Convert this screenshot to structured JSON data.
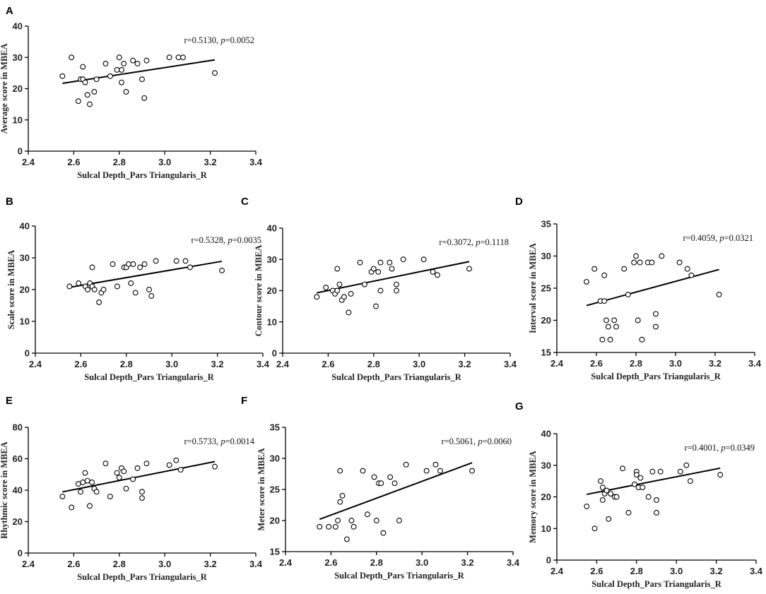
{
  "figure": {
    "background": "#ffffff",
    "point_color": "#000000"
  },
  "chart_data": [
    {
      "panel": "A",
      "type": "scatter",
      "xlabel": "Sulcal Depth_Pars Triangularis_R",
      "ylabel": "Average  score in MBEA",
      "xlim": [
        2.4,
        3.4
      ],
      "ylim": [
        0,
        40
      ],
      "xticks": [
        "2.4",
        "2.6",
        "2.8",
        "3.0",
        "3.2",
        "3.4"
      ],
      "yticks": [
        "0",
        "10",
        "20",
        "30",
        "40"
      ],
      "stat": {
        "r": "r=0.5130, ",
        "p_label": "p",
        "p": "=0.0052"
      },
      "fit": [
        [
          2.55,
          21.7
        ],
        [
          3.22,
          29.2
        ]
      ],
      "points": [
        [
          2.55,
          24
        ],
        [
          2.59,
          30
        ],
        [
          2.62,
          16
        ],
        [
          2.63,
          23
        ],
        [
          2.64,
          23
        ],
        [
          2.64,
          27
        ],
        [
          2.65,
          22
        ],
        [
          2.66,
          18
        ],
        [
          2.67,
          15
        ],
        [
          2.69,
          19
        ],
        [
          2.7,
          23
        ],
        [
          2.74,
          28
        ],
        [
          2.76,
          24
        ],
        [
          2.79,
          26
        ],
        [
          2.8,
          30
        ],
        [
          2.81,
          26
        ],
        [
          2.81,
          22
        ],
        [
          2.82,
          28
        ],
        [
          2.83,
          19
        ],
        [
          2.86,
          29
        ],
        [
          2.88,
          28
        ],
        [
          2.9,
          23
        ],
        [
          2.91,
          17
        ],
        [
          2.92,
          29
        ],
        [
          3.02,
          30
        ],
        [
          3.06,
          30
        ],
        [
          3.08,
          30
        ],
        [
          3.22,
          25
        ]
      ]
    },
    {
      "panel": "B",
      "type": "scatter",
      "xlabel": "Sulcal Depth_Pars Triangularis_R",
      "ylabel": "Scale score in MBEA",
      "xlim": [
        2.4,
        3.4
      ],
      "ylim": [
        0,
        40
      ],
      "xticks": [
        "2.4",
        "2.6",
        "2.8",
        "3.0",
        "3.2",
        "3.4"
      ],
      "yticks": [
        "0",
        "10",
        "20",
        "30",
        "40"
      ],
      "stat": {
        "r": "r=0.5328, ",
        "p_label": "p",
        "p": "=0.0035"
      },
      "fit": [
        [
          2.55,
          20.7
        ],
        [
          3.22,
          28.9
        ]
      ],
      "points": [
        [
          2.55,
          21
        ],
        [
          2.59,
          22
        ],
        [
          2.62,
          21
        ],
        [
          2.63,
          20
        ],
        [
          2.64,
          22
        ],
        [
          2.65,
          27
        ],
        [
          2.65,
          21
        ],
        [
          2.66,
          20
        ],
        [
          2.68,
          16
        ],
        [
          2.69,
          19
        ],
        [
          2.7,
          20
        ],
        [
          2.74,
          28
        ],
        [
          2.76,
          21
        ],
        [
          2.79,
          27
        ],
        [
          2.8,
          27
        ],
        [
          2.81,
          28
        ],
        [
          2.82,
          22
        ],
        [
          2.83,
          28
        ],
        [
          2.84,
          19
        ],
        [
          2.86,
          27
        ],
        [
          2.88,
          28
        ],
        [
          2.9,
          20
        ],
        [
          2.91,
          18
        ],
        [
          2.93,
          29
        ],
        [
          3.02,
          29
        ],
        [
          3.06,
          29
        ],
        [
          3.08,
          27
        ],
        [
          3.22,
          26
        ]
      ]
    },
    {
      "panel": "C",
      "type": "scatter",
      "xlabel": "Sulcal Depth_Pars Triangularis_R",
      "ylabel": "Contour score in MBEA",
      "xlim": [
        2.4,
        3.4
      ],
      "ylim": [
        0,
        40
      ],
      "xticks": [
        "2.4",
        "2.6",
        "2.8",
        "3.0",
        "3.2",
        "3.4"
      ],
      "yticks": [
        "0",
        "10",
        "20",
        "30",
        "40"
      ],
      "stat": {
        "r": "r=0.3072, ",
        "p_label": "p",
        "p": "=0.1118"
      },
      "fit": [
        [
          2.55,
          19.3
        ],
        [
          3.22,
          29.3
        ]
      ],
      "points": [
        [
          2.55,
          18
        ],
        [
          2.59,
          21
        ],
        [
          2.62,
          20
        ],
        [
          2.63,
          19
        ],
        [
          2.64,
          20
        ],
        [
          2.64,
          27
        ],
        [
          2.65,
          22
        ],
        [
          2.66,
          17
        ],
        [
          2.67,
          18
        ],
        [
          2.69,
          13
        ],
        [
          2.7,
          19
        ],
        [
          2.74,
          29
        ],
        [
          2.76,
          22
        ],
        [
          2.79,
          26
        ],
        [
          2.8,
          27
        ],
        [
          2.81,
          15
        ],
        [
          2.82,
          26
        ],
        [
          2.83,
          29
        ],
        [
          2.83,
          20
        ],
        [
          2.87,
          29
        ],
        [
          2.88,
          27
        ],
        [
          2.9,
          22
        ],
        [
          2.9,
          20
        ],
        [
          2.93,
          30
        ],
        [
          3.02,
          30
        ],
        [
          3.06,
          26
        ],
        [
          3.08,
          25
        ],
        [
          3.22,
          27
        ]
      ]
    },
    {
      "panel": "D",
      "type": "scatter",
      "xlabel": "Sulcal Depth_Pars Triangularis_R",
      "ylabel": "Interval score in MBEA",
      "xlim": [
        2.4,
        3.4
      ],
      "ylim": [
        15,
        35
      ],
      "xticks": [
        "2.4",
        "2.6",
        "2.8",
        "3.0",
        "3.2",
        "3.4"
      ],
      "yticks": [
        "15",
        "20",
        "25",
        "30",
        "35"
      ],
      "stat": {
        "r": "r=0.4059, ",
        "p_label": "p",
        "p": "=0.0321"
      },
      "fit": [
        [
          2.55,
          22.3
        ],
        [
          3.22,
          27.9
        ]
      ],
      "points": [
        [
          2.55,
          26
        ],
        [
          2.59,
          28
        ],
        [
          2.62,
          23
        ],
        [
          2.63,
          17
        ],
        [
          2.64,
          27
        ],
        [
          2.64,
          23
        ],
        [
          2.65,
          20
        ],
        [
          2.66,
          19
        ],
        [
          2.67,
          17
        ],
        [
          2.69,
          20
        ],
        [
          2.7,
          19
        ],
        [
          2.74,
          28
        ],
        [
          2.76,
          24
        ],
        [
          2.79,
          29
        ],
        [
          2.8,
          30
        ],
        [
          2.81,
          20
        ],
        [
          2.82,
          29
        ],
        [
          2.83,
          17
        ],
        [
          2.86,
          29
        ],
        [
          2.88,
          29
        ],
        [
          2.9,
          21
        ],
        [
          2.9,
          19
        ],
        [
          2.93,
          30
        ],
        [
          3.02,
          29
        ],
        [
          3.06,
          28
        ],
        [
          3.08,
          27
        ],
        [
          3.22,
          24
        ]
      ]
    },
    {
      "panel": "E",
      "type": "scatter",
      "xlabel": "Sulcal Depth_Pars Triangularis_R",
      "ylabel": "Rhythmic  score in MBEA",
      "xlim": [
        2.4,
        3.4
      ],
      "ylim": [
        0,
        80
      ],
      "xticks": [
        "2.4",
        "2.6",
        "2.8",
        "3.0",
        "3.2",
        "3.4"
      ],
      "yticks": [
        "0",
        "20",
        "40",
        "60",
        "80"
      ],
      "stat": {
        "r": "r=0.5733, ",
        "p_label": "p",
        "p": "=0.0014"
      },
      "fit": [
        [
          2.55,
          38.9
        ],
        [
          3.22,
          58.2
        ]
      ],
      "points": [
        [
          2.55,
          36
        ],
        [
          2.59,
          29
        ],
        [
          2.62,
          44
        ],
        [
          2.63,
          39
        ],
        [
          2.64,
          45
        ],
        [
          2.65,
          51
        ],
        [
          2.66,
          46
        ],
        [
          2.67,
          30
        ],
        [
          2.68,
          45
        ],
        [
          2.69,
          41
        ],
        [
          2.7,
          39
        ],
        [
          2.74,
          57
        ],
        [
          2.76,
          36
        ],
        [
          2.79,
          51
        ],
        [
          2.8,
          48
        ],
        [
          2.81,
          54
        ],
        [
          2.82,
          52
        ],
        [
          2.83,
          41
        ],
        [
          2.86,
          47
        ],
        [
          2.88,
          54
        ],
        [
          2.9,
          39
        ],
        [
          2.9,
          35
        ],
        [
          2.92,
          57
        ],
        [
          3.02,
          56
        ],
        [
          3.05,
          59
        ],
        [
          3.07,
          53
        ],
        [
          3.22,
          55
        ]
      ]
    },
    {
      "panel": "F",
      "type": "scatter",
      "xlabel": "Sulcal Depth_Pars Triangularis_R",
      "ylabel": "Meter score in MBEA",
      "xlim": [
        2.4,
        3.4
      ],
      "ylim": [
        15,
        35
      ],
      "xticks": [
        "2.4",
        "2.6",
        "2.8",
        "3.0",
        "3.2",
        "3.4"
      ],
      "yticks": [
        "15",
        "20",
        "25",
        "30",
        "35"
      ],
      "stat": {
        "r": "r=0.5061, ",
        "p_label": "p",
        "p": "=0.0060"
      },
      "fit": [
        [
          2.55,
          20.2
        ],
        [
          3.22,
          29.3
        ]
      ],
      "points": [
        [
          2.55,
          19
        ],
        [
          2.59,
          19
        ],
        [
          2.62,
          19
        ],
        [
          2.63,
          20
        ],
        [
          2.64,
          23
        ],
        [
          2.64,
          28
        ],
        [
          2.65,
          24
        ],
        [
          2.67,
          17
        ],
        [
          2.69,
          20
        ],
        [
          2.7,
          19
        ],
        [
          2.74,
          28
        ],
        [
          2.76,
          21
        ],
        [
          2.79,
          27
        ],
        [
          2.8,
          20
        ],
        [
          2.81,
          26
        ],
        [
          2.82,
          26
        ],
        [
          2.83,
          18
        ],
        [
          2.86,
          27
        ],
        [
          2.88,
          26
        ],
        [
          2.9,
          20
        ],
        [
          2.93,
          29
        ],
        [
          3.02,
          28
        ],
        [
          3.06,
          29
        ],
        [
          3.08,
          28
        ],
        [
          3.22,
          28
        ]
      ]
    },
    {
      "panel": "G",
      "type": "scatter",
      "xlabel": "Sulcal Depth_Pars Triangularis_R",
      "ylabel": "Memory score in MBEA",
      "xlim": [
        2.4,
        3.4
      ],
      "ylim": [
        0,
        40
      ],
      "xticks": [
        "2.4",
        "2.6",
        "2.8",
        "3.0",
        "3.2",
        "3.4"
      ],
      "yticks": [
        "0",
        "10",
        "20",
        "30",
        "40"
      ],
      "stat": {
        "r": "r=0.4001, ",
        "p_label": "p",
        "p": "=0.0349"
      },
      "fit": [
        [
          2.55,
          20.8
        ],
        [
          3.22,
          29.1
        ]
      ],
      "points": [
        [
          2.55,
          17
        ],
        [
          2.59,
          10
        ],
        [
          2.62,
          25
        ],
        [
          2.63,
          19
        ],
        [
          2.63,
          23
        ],
        [
          2.64,
          21
        ],
        [
          2.65,
          22
        ],
        [
          2.66,
          13
        ],
        [
          2.67,
          21
        ],
        [
          2.69,
          20
        ],
        [
          2.7,
          20
        ],
        [
          2.73,
          29
        ],
        [
          2.76,
          15
        ],
        [
          2.79,
          24
        ],
        [
          2.8,
          28
        ],
        [
          2.8,
          27
        ],
        [
          2.81,
          23
        ],
        [
          2.82,
          26
        ],
        [
          2.83,
          23
        ],
        [
          2.86,
          20
        ],
        [
          2.88,
          28
        ],
        [
          2.9,
          19
        ],
        [
          2.9,
          15
        ],
        [
          2.92,
          28
        ],
        [
          3.02,
          28
        ],
        [
          3.05,
          30
        ],
        [
          3.07,
          25
        ],
        [
          3.22,
          27
        ]
      ]
    }
  ]
}
